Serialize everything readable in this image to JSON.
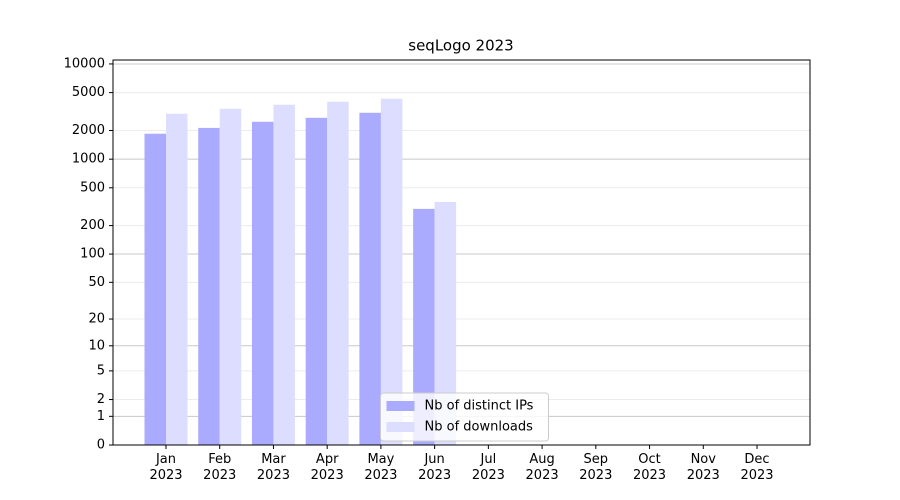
{
  "chart_data": {
    "type": "bar",
    "title": "seqLogo 2023",
    "categories": [
      "Jan\n2023",
      "Feb\n2023",
      "Mar\n2023",
      "Apr\n2023",
      "May\n2023",
      "Jun\n2023",
      "Jul\n2023",
      "Aug\n2023",
      "Sep\n2023",
      "Oct\n2023",
      "Nov\n2023",
      "Dec\n2023"
    ],
    "series": [
      {
        "name": "Nb of distinct IPs",
        "color": "#aaaaff",
        "values": [
          1850,
          2130,
          2470,
          2720,
          3070,
          300,
          null,
          null,
          null,
          null,
          null,
          null
        ]
      },
      {
        "name": "Nb of downloads",
        "color": "#ddddff",
        "values": [
          3000,
          3380,
          3730,
          4010,
          4310,
          355,
          null,
          null,
          null,
          null,
          null,
          null
        ]
      }
    ],
    "yscale": "log1p",
    "ylim": [
      0,
      11000
    ],
    "yticks": [
      0,
      1,
      2,
      5,
      10,
      20,
      50,
      100,
      200,
      500,
      1000,
      2000,
      5000,
      10000
    ],
    "grid": true,
    "legend": "lower center"
  }
}
